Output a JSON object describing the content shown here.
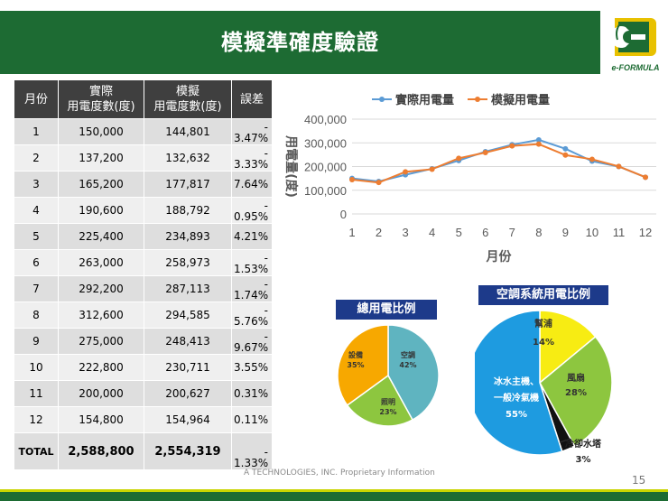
{
  "title": "模擬準確度驗證",
  "logo": {
    "text": "e-FORMULA"
  },
  "table": {
    "headers": {
      "month": "月份",
      "actual_l1": "實際",
      "actual_l2": "用電度數(度)",
      "sim_l1": "模擬",
      "sim_l2": "用電度數(度)",
      "error": "誤差"
    },
    "rows": [
      {
        "month": "1",
        "actual": "150,000",
        "sim": "144,801",
        "dash": "-",
        "err": "3.47%"
      },
      {
        "month": "2",
        "actual": "137,200",
        "sim": "132,632",
        "dash": "-",
        "err": "3.33%"
      },
      {
        "month": "3",
        "actual": "165,200",
        "sim": "177,817",
        "dash": "",
        "err": "7.64%"
      },
      {
        "month": "4",
        "actual": "190,600",
        "sim": "188,792",
        "dash": "-",
        "err": "0.95%"
      },
      {
        "month": "5",
        "actual": "225,400",
        "sim": "234,893",
        "dash": "",
        "err": "4.21%"
      },
      {
        "month": "6",
        "actual": "263,000",
        "sim": "258,973",
        "dash": "-",
        "err": "1.53%"
      },
      {
        "month": "7",
        "actual": "292,200",
        "sim": "287,113",
        "dash": "-",
        "err": "1.74%"
      },
      {
        "month": "8",
        "actual": "312,600",
        "sim": "294,585",
        "dash": "-",
        "err": "5.76%"
      },
      {
        "month": "9",
        "actual": "275,000",
        "sim": "248,413",
        "dash": "-",
        "err": "9.67%"
      },
      {
        "month": "10",
        "actual": "222,800",
        "sim": "230,711",
        "dash": "",
        "err": "3.55%"
      },
      {
        "month": "11",
        "actual": "200,000",
        "sim": "200,627",
        "dash": "",
        "err": "0.31%"
      },
      {
        "month": "12",
        "actual": "154,800",
        "sim": "154,964",
        "dash": "",
        "err": "0.11%"
      }
    ],
    "total": {
      "label": "TOTAL",
      "actual": "2,588,800",
      "sim": "2,554,319",
      "dash": "-",
      "err": "1.33%"
    }
  },
  "chart_data": [
    {
      "type": "line",
      "title": "",
      "xlabel": "月份",
      "ylabel": "用電量(度)",
      "x": [
        1,
        2,
        3,
        4,
        5,
        6,
        7,
        8,
        9,
        10,
        11,
        12
      ],
      "ylim": [
        0,
        400000
      ],
      "yticks": [
        "0",
        "100,000",
        "200,000",
        "300,000",
        "400,000"
      ],
      "series": [
        {
          "name": "實際用電量",
          "color": "#5b9bd5",
          "values": [
            150000,
            137200,
            165200,
            190600,
            225400,
            263000,
            292200,
            312600,
            275000,
            222800,
            200000,
            154800
          ]
        },
        {
          "name": "模擬用電量",
          "color": "#ed7d31",
          "values": [
            144801,
            132632,
            177817,
            188792,
            234893,
            258973,
            287113,
            294585,
            248413,
            230711,
            200627,
            154964
          ]
        }
      ]
    },
    {
      "type": "pie",
      "title": "總用電比例",
      "slices": [
        {
          "label": "空調",
          "value": 42,
          "pct": "42%",
          "color": "#5fb4c0"
        },
        {
          "label": "照明",
          "value": 23,
          "pct": "23%",
          "color": "#8dc63f"
        },
        {
          "label": "設備",
          "value": 35,
          "pct": "35%",
          "color": "#f7a800"
        }
      ]
    },
    {
      "type": "pie",
      "title": "空調系統用電比例",
      "slices": [
        {
          "label": "幫浦",
          "value": 14,
          "pct": "14%",
          "color": "#f7ec13"
        },
        {
          "label": "風扇",
          "value": 28,
          "pct": "28%",
          "color": "#8dc63f"
        },
        {
          "label": "冷卻水塔",
          "value": 3,
          "pct": "3%",
          "color": "#111111"
        },
        {
          "label_l1": "冰水主機、",
          "label_l2": "一般冷氣機",
          "label": "冰水主機、一般冷氣機",
          "value": 55,
          "pct": "55%",
          "color": "#1e9be0"
        }
      ]
    }
  ],
  "footer": {
    "note": "TECHNOLOGIES, INC. Proprietary Information",
    "prefix": "A",
    "page": "15"
  }
}
